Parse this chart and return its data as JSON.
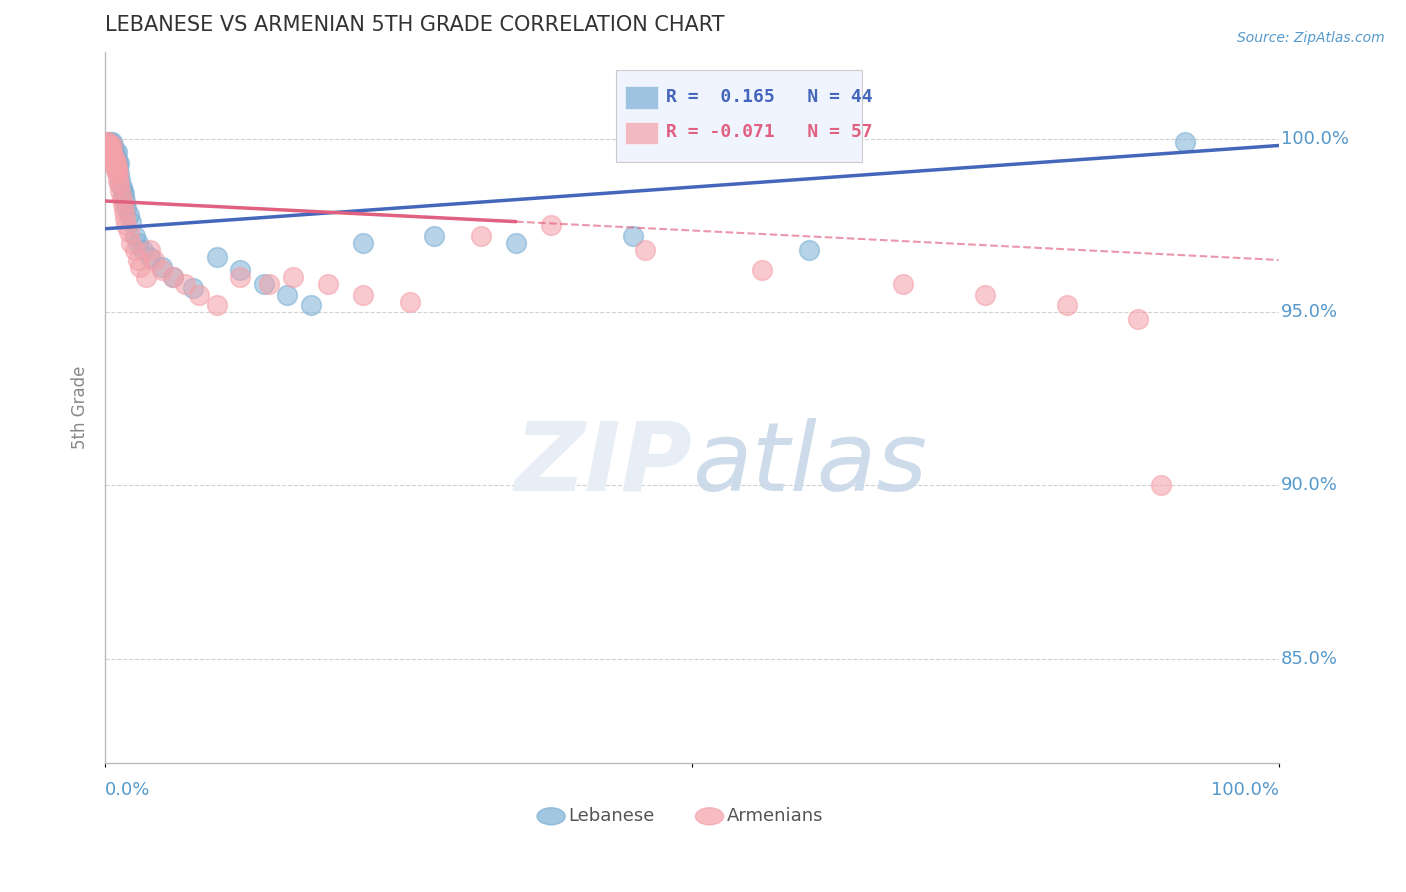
{
  "title": "LEBANESE VS ARMENIAN 5TH GRADE CORRELATION CHART",
  "source": "Source: ZipAtlas.com",
  "ylabel": "5th Grade",
  "yticks": [
    0.85,
    0.9,
    0.95,
    1.0
  ],
  "ytick_labels": [
    "85.0%",
    "90.0%",
    "95.0%",
    "100.0%"
  ],
  "xlim": [
    0.0,
    1.0
  ],
  "ylim": [
    0.82,
    1.025
  ],
  "legend_line1": "R =  0.165   N = 44",
  "legend_line2": "R = -0.071   N = 57",
  "blue_color": "#7AAFD4",
  "pink_color": "#F4A0A8",
  "blue_line_color": "#4466BB",
  "pink_line_color": "#E06080",
  "grid_color": "#CCCCCC",
  "tick_label_color": "#5599CC",
  "title_color": "#333333",
  "blue_trend_start_y": 0.974,
  "blue_trend_end_y": 0.998,
  "pink_trend_start_y": 0.982,
  "pink_trend_end_y": 0.965,
  "blue_scatter_x": [
    0.002,
    0.003,
    0.004,
    0.004,
    0.005,
    0.005,
    0.006,
    0.006,
    0.007,
    0.007,
    0.008,
    0.008,
    0.009,
    0.01,
    0.01,
    0.011,
    0.012,
    0.012,
    0.013,
    0.014,
    0.015,
    0.016,
    0.017,
    0.018,
    0.02,
    0.022,
    0.025,
    0.028,
    0.032,
    0.038,
    0.048,
    0.058,
    0.075,
    0.095,
    0.115,
    0.135,
    0.155,
    0.175,
    0.22,
    0.28,
    0.35,
    0.45,
    0.6,
    0.92
  ],
  "blue_scatter_y": [
    0.999,
    0.997,
    0.998,
    0.999,
    0.996,
    0.998,
    0.997,
    0.999,
    0.996,
    0.998,
    0.994,
    0.996,
    0.993,
    0.994,
    0.996,
    0.992,
    0.99,
    0.993,
    0.988,
    0.986,
    0.985,
    0.984,
    0.982,
    0.98,
    0.978,
    0.976,
    0.972,
    0.97,
    0.968,
    0.966,
    0.963,
    0.96,
    0.957,
    0.966,
    0.962,
    0.958,
    0.955,
    0.952,
    0.97,
    0.972,
    0.97,
    0.972,
    0.968,
    0.999
  ],
  "pink_scatter_x": [
    0.001,
    0.002,
    0.002,
    0.003,
    0.003,
    0.004,
    0.004,
    0.005,
    0.005,
    0.006,
    0.006,
    0.006,
    0.007,
    0.007,
    0.008,
    0.008,
    0.009,
    0.009,
    0.01,
    0.01,
    0.011,
    0.011,
    0.012,
    0.013,
    0.014,
    0.015,
    0.016,
    0.017,
    0.018,
    0.02,
    0.022,
    0.025,
    0.028,
    0.03,
    0.035,
    0.038,
    0.042,
    0.048,
    0.058,
    0.068,
    0.08,
    0.095,
    0.115,
    0.14,
    0.16,
    0.19,
    0.22,
    0.26,
    0.32,
    0.38,
    0.46,
    0.56,
    0.68,
    0.75,
    0.82,
    0.88,
    0.9
  ],
  "pink_scatter_y": [
    0.999,
    0.998,
    0.999,
    0.997,
    0.998,
    0.996,
    0.998,
    0.995,
    0.997,
    0.994,
    0.996,
    0.998,
    0.993,
    0.995,
    0.992,
    0.994,
    0.991,
    0.993,
    0.99,
    0.992,
    0.988,
    0.99,
    0.987,
    0.985,
    0.983,
    0.981,
    0.979,
    0.977,
    0.975,
    0.973,
    0.97,
    0.968,
    0.965,
    0.963,
    0.96,
    0.968,
    0.965,
    0.962,
    0.96,
    0.958,
    0.955,
    0.952,
    0.96,
    0.958,
    0.96,
    0.958,
    0.955,
    0.953,
    0.972,
    0.975,
    0.968,
    0.962,
    0.958,
    0.955,
    0.952,
    0.948,
    0.9
  ]
}
